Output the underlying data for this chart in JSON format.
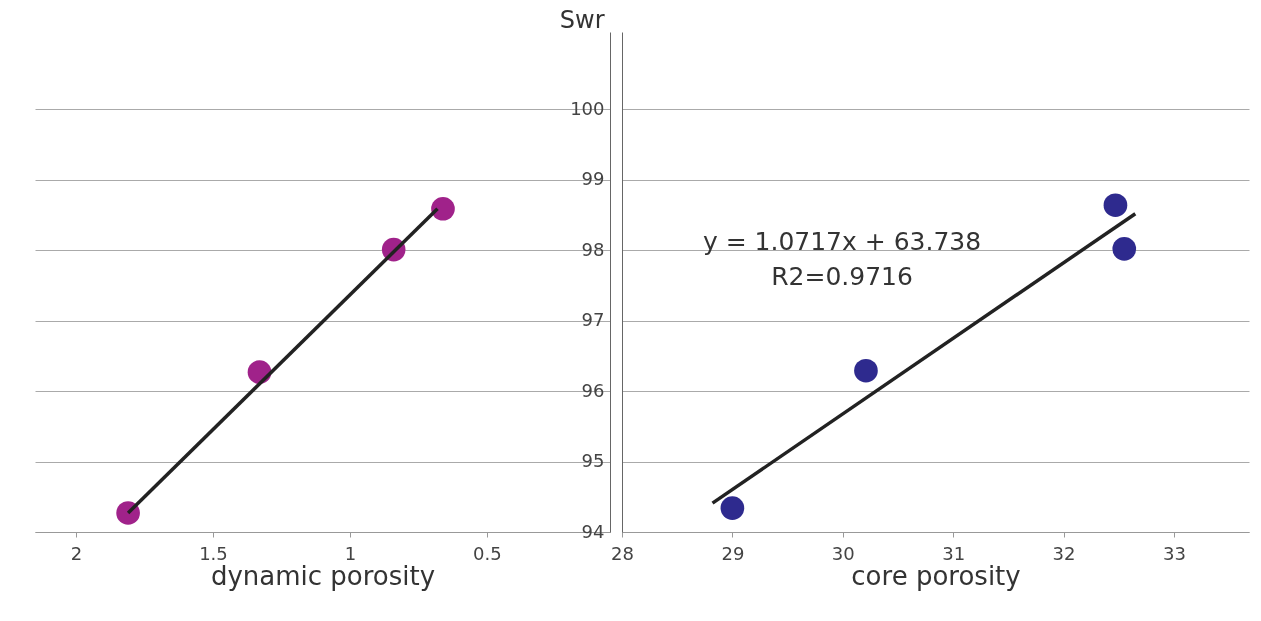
{
  "chart_data": [
    {
      "type": "scatter",
      "xlabel": "dynamic porosity",
      "ylabel": "Swr",
      "xlim": [
        2.15,
        0.05
      ],
      "xticks": [
        2,
        1.5,
        1,
        0.5
      ],
      "ylim": [
        94,
        101.1
      ],
      "yticks": [
        94,
        95,
        96,
        97,
        98,
        99,
        100
      ],
      "grid": "y",
      "marker": "circle",
      "series": [
        {
          "color": "#a0228a",
          "x": [
            1.81,
            1.33,
            0.84,
            0.66
          ],
          "values": [
            94.27,
            96.27,
            98.01,
            98.59
          ]
        },
        {
          "type": "line",
          "color": "#222222",
          "marker": "none",
          "x": [
            1.81,
            0.68
          ],
          "values": [
            94.27,
            98.59
          ]
        }
      ]
    },
    {
      "type": "scatter",
      "xlabel": "core porosity",
      "xlim": [
        28,
        33.68
      ],
      "xticks": [
        28,
        29,
        30,
        31,
        32,
        33
      ],
      "ylim": [
        94,
        101.1
      ],
      "yticks": [
        94,
        95,
        96,
        97,
        98,
        99,
        100
      ],
      "tick_labels": "x",
      "grid": "y",
      "marker": "circle",
      "annotations": [
        "y = 1.0717x + 63.738",
        "R2=0.9716"
      ],
      "series": [
        {
          "color": "#2e2a8e",
          "x": [
            29.0,
            30.21,
            32.47,
            32.55
          ],
          "values": [
            94.34,
            96.29,
            98.64,
            98.02
          ]
        },
        {
          "type": "line",
          "color": "#222222",
          "marker": "none",
          "x": [
            28.82,
            32.65
          ],
          "values": [
            94.41,
            98.52
          ]
        }
      ]
    }
  ]
}
